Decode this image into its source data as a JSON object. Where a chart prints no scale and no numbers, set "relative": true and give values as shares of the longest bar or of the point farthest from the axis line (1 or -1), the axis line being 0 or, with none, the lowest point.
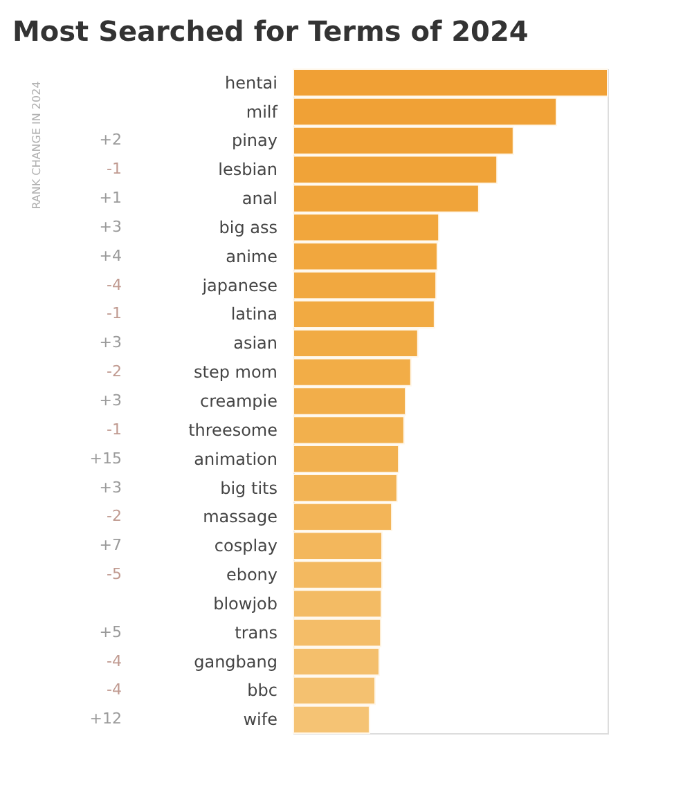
{
  "chart_data": {
    "type": "bar",
    "orientation": "horizontal",
    "relative": true,
    "title": "Most Searched for Terms of 2024",
    "categories": [
      "hentai",
      "milf",
      "pinay",
      "lesbian",
      "anal",
      "big ass",
      "anime",
      "japanese",
      "latina",
      "asian",
      "step mom",
      "creampie",
      "threesome",
      "animation",
      "big tits",
      "massage",
      "cosplay",
      "ebony",
      "blowjob",
      "trans",
      "gangbang",
      "bbc",
      "wife"
    ],
    "values": [
      1,
      0.837,
      0.7,
      0.648,
      0.59,
      0.463,
      0.458,
      0.454,
      0.449,
      0.396,
      0.374,
      0.357,
      0.352,
      0.335,
      0.33,
      0.313,
      0.282,
      0.282,
      0.28,
      0.278,
      0.273,
      0.26,
      0.242
    ],
    "colors": [
      "#f0a035",
      "#f0a136",
      "#f0a237",
      "#f0a338",
      "#f0a43a",
      "#f1a63c",
      "#f1a73e",
      "#f1a840",
      "#f1aa42",
      "#f1ab44",
      "#f2ad47",
      "#f2ae4a",
      "#f2b04d",
      "#f2b150",
      "#f2b354",
      "#f3b558",
      "#f3b75c",
      "#f3b960",
      "#f3bb64",
      "#f4bd68",
      "#f4bf6c",
      "#f4c170",
      "#f5c374"
    ],
    "y2_categories": [
      null,
      null,
      "+2",
      "-1",
      "+1",
      "+3",
      "+4",
      "-4",
      "-1",
      "+3",
      "-2",
      "+3",
      "-1",
      "+15",
      "+3",
      "-2",
      "+7",
      "-5",
      null,
      "+5",
      "-4",
      "-4",
      "+12"
    ],
    "annotations": [
      "RANK CHANGE IN 2024"
    ]
  }
}
